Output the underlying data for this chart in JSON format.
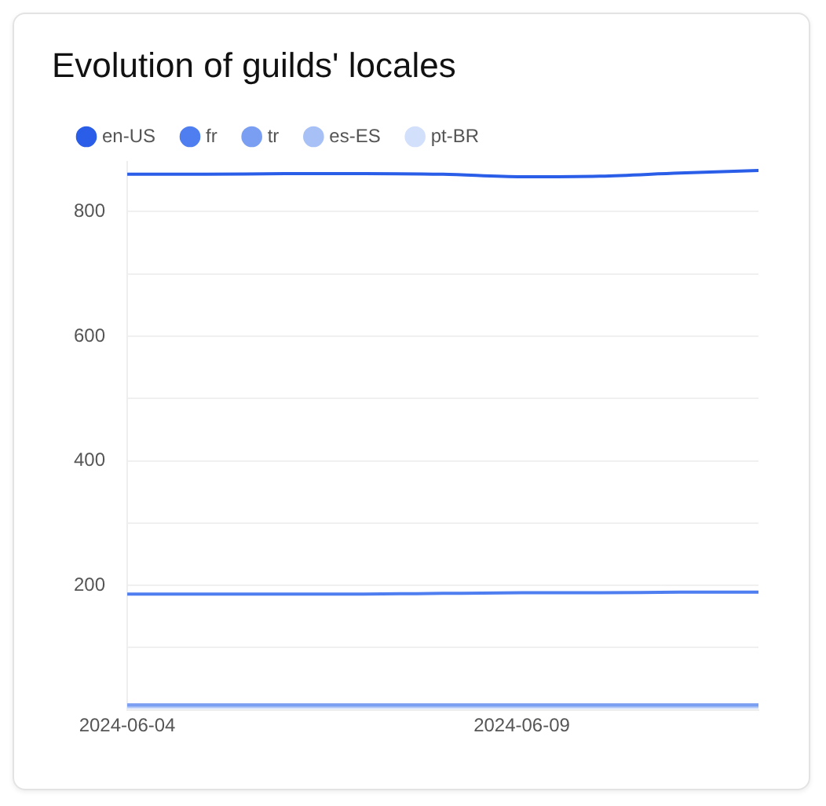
{
  "chart_data": {
    "type": "line",
    "title": "Evolution of guilds' locales",
    "x": [
      "2024-06-04",
      "2024-06-05",
      "2024-06-06",
      "2024-06-07",
      "2024-06-08",
      "2024-06-09",
      "2024-06-10",
      "2024-06-11",
      "2024-06-12"
    ],
    "xlim": [
      "2024-06-04",
      "2024-06-12"
    ],
    "xticks": [
      "2024-06-04",
      "2024-06-09"
    ],
    "ylim": [
      0,
      880
    ],
    "yticks": [
      {
        "value": 100,
        "label": null
      },
      200,
      {
        "value": 300,
        "label": null
      },
      400,
      {
        "value": 500,
        "label": null
      },
      600,
      {
        "value": 700,
        "label": null
      },
      800
    ],
    "series": [
      {
        "name": "en-US",
        "color": "#2a5de8",
        "values": [
          860,
          860,
          861,
          861,
          860,
          856,
          857,
          862,
          866
        ]
      },
      {
        "name": "fr",
        "color": "#4f7ef0",
        "values": [
          186,
          186,
          186,
          186,
          187,
          188,
          188,
          189,
          189
        ]
      },
      {
        "name": "tr",
        "color": "#7a9ef2",
        "values": [
          8,
          8,
          8,
          8,
          8,
          8,
          8,
          8,
          8
        ]
      },
      {
        "name": "es-ES",
        "color": "#a7c0f6",
        "values": [
          6,
          6,
          6,
          6,
          6,
          6,
          6,
          6,
          6
        ]
      },
      {
        "name": "pt-BR",
        "color": "#d3e0fb",
        "values": [
          4,
          4,
          4,
          4,
          4,
          4,
          4,
          4,
          4
        ]
      }
    ],
    "grid": "y",
    "legend": "top left",
    "marker": "none",
    "line_style": "solid"
  }
}
